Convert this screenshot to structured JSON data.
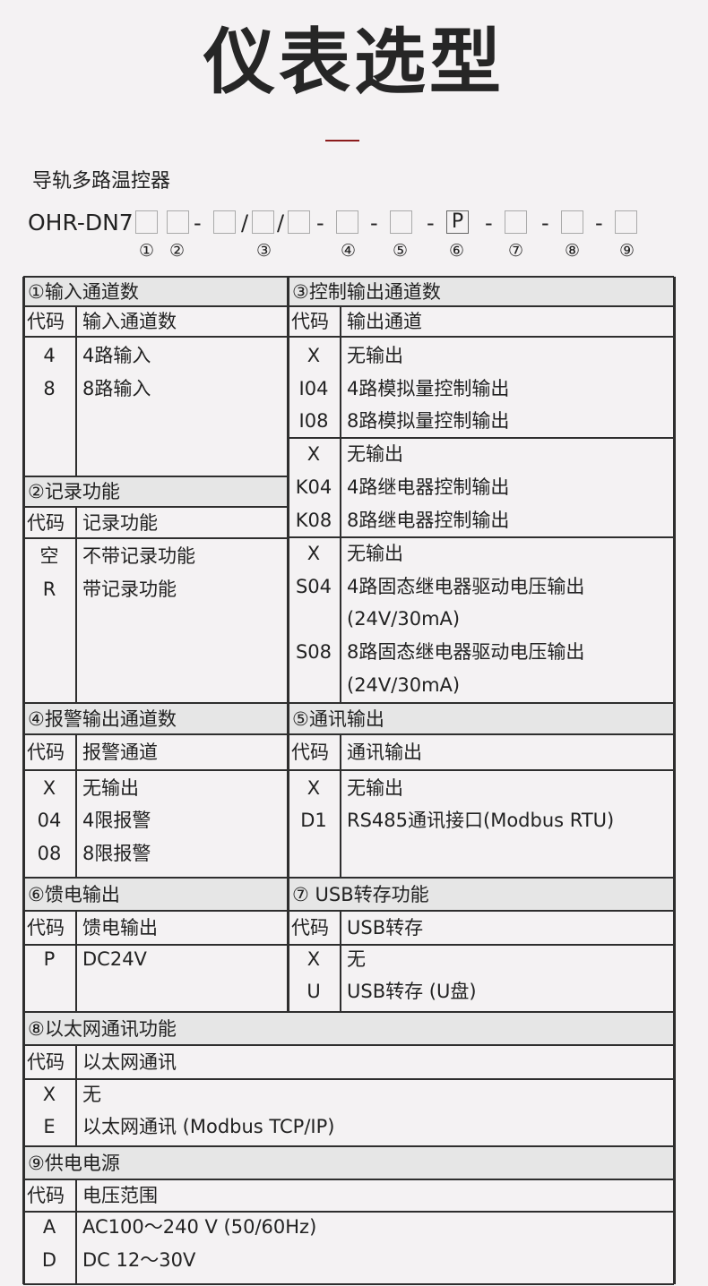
{
  "page": {
    "title": "仪表选型",
    "subtitle": "导轨多路温控器"
  },
  "model": {
    "prefix": "OHR-DN7",
    "slots": [
      "",
      "",
      "",
      "",
      "",
      "",
      "",
      "P",
      "",
      "",
      ""
    ],
    "separators": [
      "",
      "",
      "-",
      "/",
      "/",
      "-",
      "-",
      "-",
      "-",
      "-",
      "-"
    ],
    "markers": [
      "①",
      "②",
      "③",
      "④",
      "⑤",
      "⑥",
      "⑦",
      "⑧",
      "⑨"
    ]
  },
  "colors": {
    "accent_line": "#8c1c1c",
    "header_fill": "#e6e6e6",
    "border": "#2e2e2e",
    "background": "#f4f2f3"
  },
  "sections": [
    {
      "title": "①输入通道数",
      "code_header": "代码",
      "desc_header": "输入通道数",
      "groups": [
        [
          {
            "code": "4",
            "desc": "4路输入"
          },
          {
            "code": "8",
            "desc": "8路输入"
          }
        ]
      ]
    },
    {
      "title": "②记录功能",
      "code_header": "代码",
      "desc_header": "记录功能",
      "groups": [
        [
          {
            "code": "空",
            "desc": "不带记录功能"
          },
          {
            "code": "R",
            "desc": "带记录功能"
          }
        ]
      ]
    },
    {
      "title": "③控制输出通道数",
      "code_header": "代码",
      "desc_header": "输出通道",
      "groups": [
        [
          {
            "code": "X",
            "desc": "无输出"
          },
          {
            "code": "I04",
            "desc": "4路模拟量控制输出"
          },
          {
            "code": "I08",
            "desc": "8路模拟量控制输出"
          }
        ],
        [
          {
            "code": "X",
            "desc": "无输出"
          },
          {
            "code": "K04",
            "desc": "4路继电器控制输出"
          },
          {
            "code": "K08",
            "desc": "8路继电器控制输出"
          }
        ],
        [
          {
            "code": "X",
            "desc": "无输出"
          },
          {
            "code": "S04",
            "desc": "4路固态继电器驱动电压输出"
          },
          {
            "code": "",
            "desc": "(24V/30mA)"
          },
          {
            "code": "S08",
            "desc": "8路固态继电器驱动电压输出"
          },
          {
            "code": "",
            "desc": "(24V/30mA)"
          }
        ]
      ]
    },
    {
      "title": "④报警输出通道数",
      "code_header": "代码",
      "desc_header": "报警通道",
      "groups": [
        [
          {
            "code": "X",
            "desc": "无输出"
          },
          {
            "code": "04",
            "desc": "4限报警"
          },
          {
            "code": "08",
            "desc": "8限报警"
          }
        ]
      ]
    },
    {
      "title": "⑤通讯输出",
      "code_header": "代码",
      "desc_header": "通讯输出",
      "groups": [
        [
          {
            "code": "X",
            "desc": "无输出"
          },
          {
            "code": "D1",
            "desc": "RS485通讯接口(Modbus RTU)"
          }
        ]
      ]
    },
    {
      "title": "⑥馈电输出",
      "code_header": "代码",
      "desc_header": "馈电输出",
      "groups": [
        [
          {
            "code": "P",
            "desc": "DC24V"
          }
        ]
      ]
    },
    {
      "title": "⑦ USB转存功能",
      "code_header": "代码",
      "desc_header": "USB转存",
      "groups": [
        [
          {
            "code": "X",
            "desc": "无"
          },
          {
            "code": "U",
            "desc": "USB转存 (U盘)"
          }
        ]
      ]
    },
    {
      "title": "⑧以太网通讯功能",
      "code_header": "代码",
      "desc_header": "以太网通讯",
      "groups": [
        [
          {
            "code": "X",
            "desc": "无"
          },
          {
            "code": "E",
            "desc": "以太网通讯 (Modbus TCP/IP)"
          }
        ]
      ]
    },
    {
      "title": "⑨供电电源",
      "code_header": "代码",
      "desc_header": "电压范围",
      "groups": [
        [
          {
            "code": "A",
            "desc": "AC100～240 V (50/60Hz)"
          },
          {
            "code": "D",
            "desc": "DC 12～30V"
          }
        ]
      ]
    }
  ]
}
